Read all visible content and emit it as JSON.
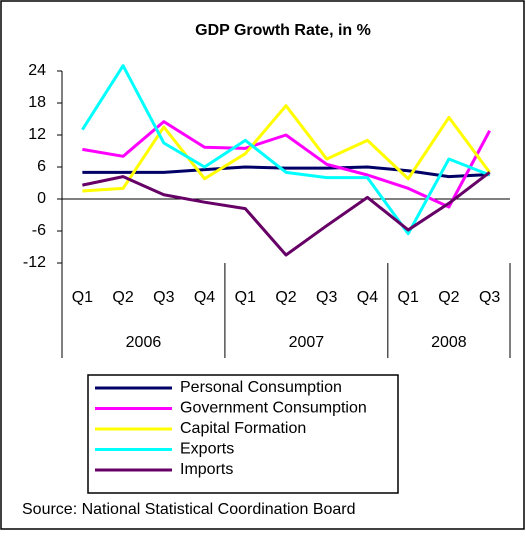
{
  "chart_data": {
    "type": "line",
    "title": "GDP Growth Rate, in %",
    "categories": [
      "Q1",
      "Q2",
      "Q3",
      "Q4",
      "Q1",
      "Q2",
      "Q3",
      "Q4",
      "Q1",
      "Q2",
      "Q3"
    ],
    "year_groups": [
      {
        "label": "2006",
        "count": 4
      },
      {
        "label": "2007",
        "count": 4
      },
      {
        "label": "2008",
        "count": 3
      }
    ],
    "series": [
      {
        "name": "Personal Consumption",
        "color": "#000066",
        "values": [
          5,
          5,
          5,
          5.5,
          6,
          5.8,
          5.8,
          6,
          5.3,
          4.2,
          4.6
        ]
      },
      {
        "name": "Government Consumption",
        "color": "#ff00ff",
        "values": [
          9.3,
          8,
          14.5,
          9.7,
          9.5,
          12,
          6.5,
          4.5,
          2,
          -1.5,
          12.8
        ]
      },
      {
        "name": "Capital Formation",
        "color": "#ffff00",
        "values": [
          1.5,
          2,
          13.5,
          3.8,
          8.5,
          17.5,
          7.5,
          11,
          3.8,
          15.3,
          5
        ]
      },
      {
        "name": "Exports",
        "color": "#00ffff",
        "values": [
          13,
          25,
          10.5,
          6,
          11,
          5,
          4,
          4,
          -6.5,
          7.5,
          4.5
        ]
      },
      {
        "name": "Imports",
        "color": "#660066",
        "values": [
          2.6,
          4.2,
          0.8,
          -0.6,
          -1.8,
          -10.5,
          -5,
          0.3,
          -5.8,
          -0.8,
          5
        ]
      }
    ],
    "ylim": [
      -12,
      24
    ],
    "yticks": [
      -12,
      -6,
      0,
      6,
      12,
      18,
      24
    ],
    "source": "Source: National Statistical Coordination Board"
  }
}
